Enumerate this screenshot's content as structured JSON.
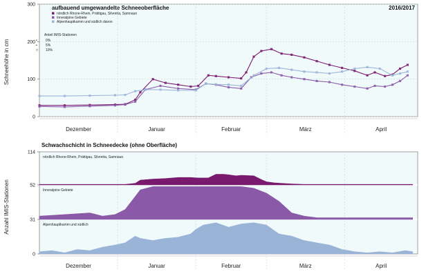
{
  "chart_data": [
    {
      "type": "line",
      "title": "aufbauend umgewandelte Schneeoberfläche",
      "season": "2016/2017",
      "ylabel": "Schneehöhe in cm",
      "xlabel": "",
      "ylim": [
        0,
        300
      ],
      "yticks": [
        0,
        100,
        200,
        300
      ],
      "months": [
        "Dezember",
        "Januar",
        "Februar",
        "März",
        "April"
      ],
      "x_start_day": 0,
      "x_end_day": 150,
      "month_starts": [
        0,
        31,
        62,
        90,
        121
      ],
      "legend": {
        "position": "top-left",
        "entries": [
          {
            "label": "nördlich Rhone-Rhein, Prättigau, Silvretta, Samnaun",
            "color": "#7a1a6e"
          },
          {
            "label": "Inneralpine Gebiete",
            "color": "#8a5aa8"
          },
          {
            "label": "Alpenhauptkamm und südlich davon",
            "color": "#9ab4d8"
          }
        ],
        "size_title": "Anteil IMIS-Stationen",
        "size_entries": [
          {
            "symbol": "•",
            "label": "0%"
          },
          {
            "symbol": "▪",
            "label": "5%"
          },
          {
            "symbol": "□",
            "label": "10%"
          }
        ]
      },
      "series": [
        {
          "name": "nördlich Rhone-Rhein, Prättigau, Silvretta, Samnaun",
          "color": "#7a1a6e",
          "x": [
            0,
            10,
            20,
            30,
            34,
            38,
            40,
            45,
            50,
            55,
            60,
            63,
            67,
            70,
            75,
            80,
            82,
            85,
            88,
            92,
            96,
            100,
            105,
            110,
            115,
            120,
            125,
            130,
            133,
            137,
            140,
            143,
            146
          ],
          "y": [
            30,
            30,
            31,
            32,
            33,
            45,
            65,
            100,
            90,
            85,
            80,
            82,
            110,
            108,
            105,
            102,
            118,
            160,
            175,
            180,
            168,
            165,
            158,
            148,
            138,
            130,
            122,
            110,
            118,
            108,
            112,
            128,
            138
          ]
        },
        {
          "name": "Inneralpine Gebiete",
          "color": "#8a5aa8",
          "x": [
            0,
            10,
            20,
            30,
            34,
            38,
            42,
            48,
            55,
            62,
            66,
            70,
            75,
            80,
            84,
            88,
            92,
            96,
            100,
            105,
            110,
            115,
            120,
            125,
            130,
            133,
            137,
            140,
            143,
            146
          ],
          "y": [
            27,
            26,
            28,
            30,
            32,
            40,
            72,
            82,
            75,
            72,
            88,
            85,
            78,
            75,
            105,
            115,
            118,
            110,
            105,
            100,
            95,
            92,
            85,
            80,
            75,
            82,
            80,
            85,
            95,
            110
          ]
        },
        {
          "name": "Alpenhauptkamm und südlich davon",
          "color": "#9ab4d8",
          "x": [
            0,
            10,
            20,
            30,
            34,
            38,
            42,
            48,
            55,
            62,
            66,
            70,
            75,
            80,
            85,
            90,
            95,
            100,
            105,
            110,
            115,
            120,
            125,
            130,
            135,
            140,
            143,
            146
          ],
          "y": [
            55,
            55,
            56,
            57,
            58,
            68,
            72,
            72,
            70,
            70,
            88,
            86,
            85,
            82,
            110,
            128,
            130,
            125,
            120,
            118,
            115,
            120,
            128,
            132,
            128,
            110,
            115,
            120
          ]
        }
      ]
    },
    {
      "type": "area",
      "title": "Schwachschicht in Schneedecke (ohne Oberfläche)",
      "ylabel": "Anzahl IMIS-Stationen",
      "xlabel": "",
      "yticks": [
        0,
        31,
        52,
        114
      ],
      "months": [
        "Dezember",
        "Januar",
        "Februar",
        "März",
        "April"
      ],
      "month_starts": [
        0,
        31,
        62,
        90,
        121
      ],
      "bands": [
        {
          "label": "nördlich Rhone-Rhein, Prättigau, Silvretta, Samnaun",
          "color": "#7a1a6e",
          "x": [
            0,
            10,
            20,
            30,
            34,
            38,
            40,
            45,
            50,
            55,
            60,
            63,
            67,
            70,
            73,
            75,
            78,
            80,
            85,
            88,
            90,
            93,
            96,
            100,
            105,
            110,
            115,
            120,
            125,
            130,
            135,
            140,
            145,
            148
          ],
          "y": [
            1,
            1,
            1,
            1,
            1,
            3,
            9,
            11,
            12,
            14,
            14,
            13,
            13,
            20,
            20,
            19,
            17,
            18,
            17,
            10,
            6,
            4,
            3,
            2,
            1,
            1,
            1,
            1,
            1,
            1,
            1,
            1,
            1,
            1
          ]
        },
        {
          "label": "Inneralpine Gebiete",
          "color": "#8a5aa8",
          "x": [
            0,
            10,
            20,
            25,
            30,
            34,
            38,
            40,
            45,
            50,
            55,
            60,
            65,
            70,
            75,
            80,
            85,
            90,
            95,
            100,
            105,
            110,
            115,
            120,
            125,
            130,
            135,
            140,
            145,
            148
          ],
          "y": [
            2,
            3,
            4,
            2,
            3,
            6,
            14,
            18,
            20,
            20,
            20,
            20,
            20,
            20,
            20,
            20,
            19,
            16,
            11,
            4,
            2,
            1,
            1,
            1,
            1,
            1,
            1,
            1,
            1,
            1
          ]
        },
        {
          "label": "Alpenhauptkamm und südlich",
          "color": "#9ab4d8",
          "x": [
            0,
            5,
            10,
            15,
            20,
            25,
            30,
            34,
            38,
            40,
            45,
            50,
            55,
            60,
            62,
            65,
            70,
            75,
            80,
            85,
            90,
            95,
            100,
            105,
            110,
            115,
            120,
            125,
            130,
            135,
            140,
            145,
            148
          ],
          "y": [
            2,
            3,
            1,
            4,
            3,
            6,
            8,
            10,
            16,
            14,
            12,
            14,
            15,
            18,
            22,
            26,
            28,
            24,
            27,
            28,
            26,
            18,
            16,
            12,
            10,
            8,
            4,
            2,
            1,
            2,
            1,
            3,
            2
          ]
        }
      ]
    }
  ]
}
